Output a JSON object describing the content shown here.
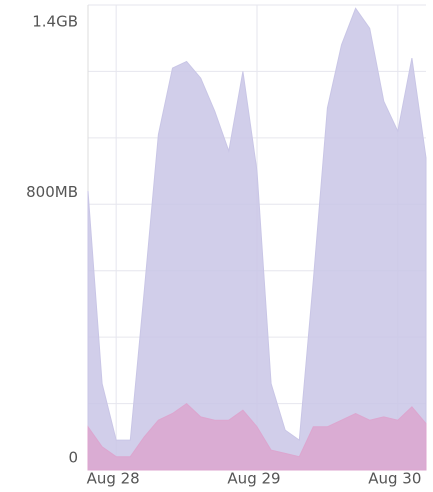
{
  "chart_data": {
    "type": "area",
    "categories": [
      null,
      null,
      "Aug 28",
      null,
      null,
      null,
      null,
      null,
      null,
      null,
      null,
      null,
      "Aug 29",
      null,
      null,
      null,
      null,
      null,
      null,
      null,
      null,
      null,
      "Aug 30",
      null,
      null
    ],
    "series": [
      {
        "color": "#c9c6e6",
        "values": [
          840,
          260,
          90,
          90,
          540,
          1010,
          1210,
          1230,
          1180,
          1080,
          960,
          1200,
          900,
          260,
          120,
          90,
          570,
          1090,
          1280,
          1390,
          1330,
          1110,
          1020,
          1240,
          940
        ]
      },
      {
        "color": "#dca6cf",
        "values": [
          130,
          70,
          40,
          40,
          100,
          150,
          170,
          200,
          160,
          150,
          150,
          180,
          130,
          60,
          50,
          40,
          130,
          130,
          150,
          170,
          150,
          160,
          150,
          190,
          140
        ]
      }
    ],
    "ylim": [
      0,
      1400
    ],
    "yticks": [
      {
        "value": 0,
        "label": "0"
      },
      {
        "value": 800,
        "label": "800MB"
      },
      {
        "value": 1400,
        "label": "1.4GB"
      }
    ],
    "minor_yticks": [
      200,
      400,
      600,
      1000,
      1200
    ],
    "grid": true
  }
}
